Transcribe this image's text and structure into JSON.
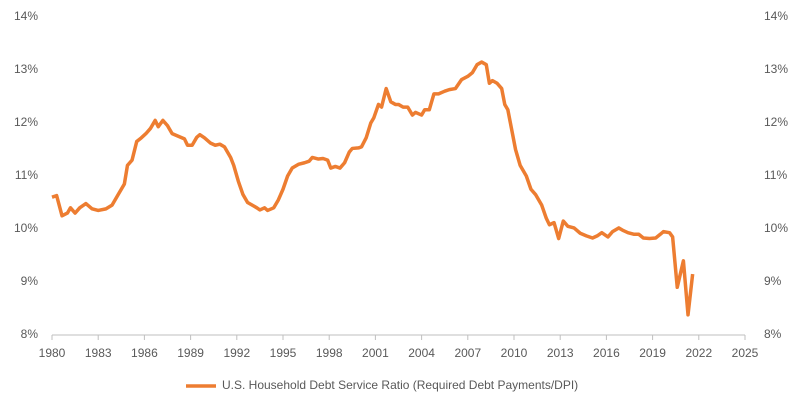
{
  "chart_data": {
    "type": "line",
    "x": [
      1980.0,
      1980.3,
      1980.65,
      1981.0,
      1981.2,
      1981.5,
      1981.8,
      1982.2,
      1982.6,
      1983.0,
      1983.5,
      1983.9,
      1984.3,
      1984.7,
      1984.9,
      1985.2,
      1985.5,
      1985.8,
      1986.1,
      1986.4,
      1986.7,
      1986.9,
      1987.2,
      1987.5,
      1987.8,
      1988.2,
      1988.6,
      1988.8,
      1989.1,
      1989.4,
      1989.6,
      1989.9,
      1990.3,
      1990.6,
      1990.9,
      1991.2,
      1991.6,
      1991.8,
      1992.1,
      1992.4,
      1992.7,
      1993.0,
      1993.3,
      1993.5,
      1993.8,
      1994.0,
      1994.4,
      1994.7,
      1995.0,
      1995.3,
      1995.6,
      1996.0,
      1996.4,
      1996.7,
      1996.9,
      1997.3,
      1997.6,
      1997.9,
      1998.1,
      1998.4,
      1998.7,
      1999.0,
      1999.3,
      1999.5,
      1999.9,
      2000.1,
      2000.4,
      2000.7,
      2000.9,
      2001.2,
      2001.4,
      2001.7,
      2002.0,
      2002.3,
      2002.5,
      2002.8,
      2003.1,
      2003.4,
      2003.6,
      2004.0,
      2004.2,
      2004.5,
      2004.8,
      2005.1,
      2005.5,
      2005.8,
      2006.2,
      2006.6,
      2007.0,
      2007.3,
      2007.6,
      2007.9,
      2008.2,
      2008.4,
      2008.6,
      2008.9,
      2009.2,
      2009.4,
      2009.6,
      2009.9,
      2010.1,
      2010.4,
      2010.8,
      2011.1,
      2011.4,
      2011.8,
      2012.1,
      2012.3,
      2012.6,
      2012.9,
      2013.2,
      2013.5,
      2013.9,
      2014.3,
      2014.7,
      2015.1,
      2015.4,
      2015.7,
      2016.1,
      2016.4,
      2016.8,
      2017.1,
      2017.4,
      2017.8,
      2018.1,
      2018.4,
      2018.8,
      2019.2,
      2019.5,
      2019.7,
      2020.1,
      2020.3,
      2020.6,
      2021.0,
      2021.3,
      2021.6
    ],
    "series": [
      {
        "name": "U.S. Household Debt Service Ratio (Required Debt Payments/DPI)",
        "color": "#ED7D31",
        "values": [
          10.6,
          10.63,
          10.25,
          10.3,
          10.4,
          10.3,
          10.4,
          10.48,
          10.38,
          10.35,
          10.38,
          10.45,
          10.65,
          10.85,
          11.2,
          11.3,
          11.65,
          11.72,
          11.8,
          11.9,
          12.05,
          11.93,
          12.05,
          11.95,
          11.8,
          11.75,
          11.7,
          11.58,
          11.58,
          11.73,
          11.78,
          11.72,
          11.62,
          11.58,
          11.6,
          11.55,
          11.35,
          11.2,
          10.9,
          10.65,
          10.5,
          10.45,
          10.4,
          10.36,
          10.4,
          10.35,
          10.4,
          10.55,
          10.75,
          11.0,
          11.15,
          11.22,
          11.25,
          11.28,
          11.35,
          11.32,
          11.33,
          11.3,
          11.15,
          11.18,
          11.15,
          11.25,
          11.45,
          11.52,
          11.53,
          11.55,
          11.72,
          12.0,
          12.1,
          12.35,
          12.3,
          12.65,
          12.4,
          12.35,
          12.35,
          12.3,
          12.3,
          12.15,
          12.2,
          12.15,
          12.25,
          12.25,
          12.55,
          12.55,
          12.6,
          12.63,
          12.65,
          12.82,
          12.88,
          12.95,
          13.1,
          13.15,
          13.1,
          12.75,
          12.8,
          12.75,
          12.65,
          12.35,
          12.25,
          11.8,
          11.5,
          11.2,
          11.0,
          10.75,
          10.65,
          10.45,
          10.2,
          10.08,
          10.12,
          9.82,
          10.15,
          10.05,
          10.02,
          9.92,
          9.87,
          9.83,
          9.87,
          9.93,
          9.85,
          9.95,
          10.02,
          9.97,
          9.93,
          9.9,
          9.9,
          9.83,
          9.82,
          9.83,
          9.9,
          9.95,
          9.93,
          9.85,
          8.9,
          9.4,
          8.38,
          9.15
        ]
      }
    ],
    "xlim": [
      1980,
      2025
    ],
    "xticks": [
      1980,
      1983,
      1986,
      1989,
      1992,
      1995,
      1998,
      2001,
      2004,
      2007,
      2010,
      2013,
      2016,
      2019,
      2022,
      2025
    ],
    "ylim": [
      8,
      14
    ],
    "yticks": [
      {
        "value": 8,
        "label": "8%"
      },
      {
        "value": 9,
        "label": "9%"
      },
      {
        "value": 10,
        "label": "10%"
      },
      {
        "value": 11,
        "label": "11%"
      },
      {
        "value": 12,
        "label": "12%"
      },
      {
        "value": 13,
        "label": "13%"
      },
      {
        "value": 14,
        "label": "14%"
      }
    ],
    "y2lim": [
      8,
      14
    ],
    "y2ticks": [
      {
        "value": 8,
        "label": "8%"
      },
      {
        "value": 9,
        "label": "9%"
      },
      {
        "value": 10,
        "label": "10%"
      },
      {
        "value": 11,
        "label": "11%"
      },
      {
        "value": 12,
        "label": "12%"
      },
      {
        "value": 13,
        "label": "13%"
      },
      {
        "value": 14,
        "label": "14%"
      }
    ],
    "grid": false,
    "legend": "bottom"
  }
}
